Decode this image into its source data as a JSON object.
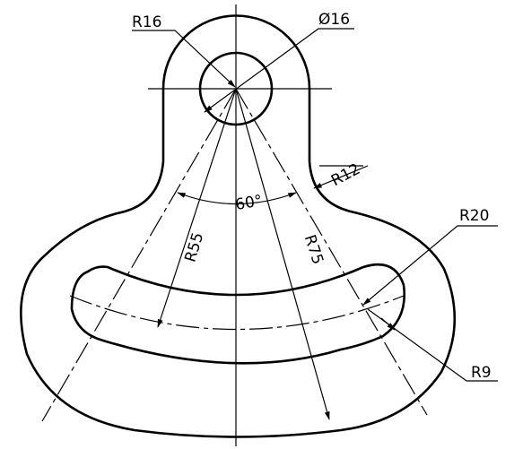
{
  "drawing": {
    "labels": {
      "r16": "R16",
      "d16": "Ø16",
      "r12": "R12",
      "angle": "60°",
      "r20": "R20",
      "r55": "R55",
      "r75": "R75",
      "r9": "R9"
    }
  }
}
